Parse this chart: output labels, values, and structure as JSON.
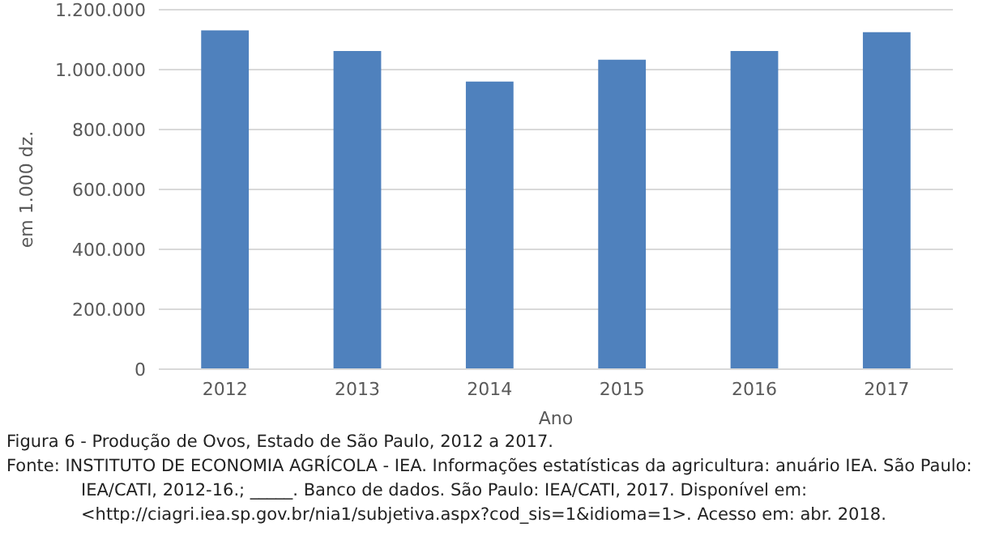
{
  "chart_data": {
    "type": "bar",
    "title": "Figura 6 - Produção de Ovos, Estado de São Paulo, 2012 a 2017.",
    "xlabel": "Ano",
    "ylabel": "em 1.000 dz.",
    "categories": [
      "2012",
      "2013",
      "2014",
      "2015",
      "2016",
      "2017"
    ],
    "values": [
      1131000,
      1062000,
      960000,
      1033000,
      1062000,
      1125000
    ],
    "color": "#4f81bd",
    "ylim": [
      0,
      1200000
    ],
    "yticks": [
      0,
      {
        "value": 200000,
        "label": "200.000"
      },
      {
        "value": 400000,
        "label": "400.000"
      },
      {
        "value": 600000,
        "label": "600.000"
      },
      {
        "value": 800000,
        "label": "800.000"
      },
      {
        "value": 1000000,
        "label": "1.000.000"
      },
      {
        "value": 1200000,
        "label": "1.200.000"
      }
    ],
    "grid": "y",
    "annotations": [
      "Fonte: INSTITUTO DE ECONOMIA AGRÍCOLA - IEA. Informações estatísticas da agricultura: anuário IEA. São Paulo: IEA/CATI, 2012-16.; _____. Banco de dados. São Paulo: IEA/CATI, 2017. Disponível em: <http://ciagri.iea.sp.gov.br/nia1/subjetiva.aspx?cod_sis=1&idioma=1>. Acesso em: abr. 2018."
    ]
  }
}
